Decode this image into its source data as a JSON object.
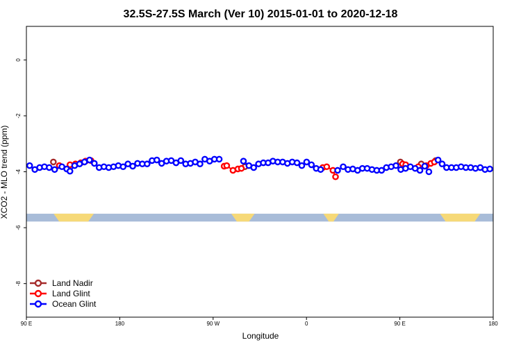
{
  "chart_data": {
    "type": "scatter",
    "title": "32.5S-27.5S March (Ver 10)   2015-01-01 to 2020-12-18",
    "xlabel": "Longitude",
    "ylabel": "XCO2 - MLO trend (ppm)",
    "xlim": [
      90,
      450
    ],
    "ylim": [
      -9.2,
      1.2
    ],
    "x_ticks": [
      {
        "value": 90,
        "label": "90 E"
      },
      {
        "value": 162,
        "label": "180"
      },
      {
        "value": 234,
        "label": "90 W"
      },
      {
        "value": 306,
        "label": "0"
      },
      {
        "value": 378,
        "label": "90 E"
      },
      {
        "value": 450,
        "label": "180"
      }
    ],
    "y_ticks": [
      {
        "value": 0,
        "label": "0"
      },
      {
        "value": -2,
        "label": "-2"
      },
      {
        "value": -4,
        "label": "-4"
      },
      {
        "value": -6,
        "label": "-6"
      },
      {
        "value": -8,
        "label": "-8"
      }
    ],
    "legend_position": "bottom-left",
    "land_mask": {
      "y_low": -5.78,
      "y_high": -5.5,
      "ocean_color": "#a8bcd8",
      "land_color": "#f6d978",
      "land_segments": [
        [
          111,
          142
        ],
        [
          248,
          266
        ],
        [
          319,
          331
        ],
        [
          409,
          440
        ]
      ]
    },
    "series": [
      {
        "name": "Land Nadir",
        "color": "#a52a2a",
        "points": [
          [
            110.8,
            -3.65
          ],
          [
            258.5,
            -3.82
          ],
          [
            378.4,
            -3.65
          ],
          [
            394.5,
            -3.72
          ],
          [
            405.6,
            -3.6
          ]
        ]
      },
      {
        "name": "Land Glint",
        "color": "#ff0000",
        "points": [
          [
            115.4,
            -3.78
          ],
          [
            123.6,
            -3.75
          ],
          [
            127.8,
            -3.72
          ],
          [
            131.9,
            -3.68
          ],
          [
            135.6,
            -3.62
          ],
          [
            139.8,
            -3.6
          ],
          [
            242.5,
            -3.8
          ],
          [
            244.5,
            -3.78
          ],
          [
            249.3,
            -3.95
          ],
          [
            253.1,
            -3.9
          ],
          [
            255.8,
            -3.88
          ],
          [
            318.5,
            -3.85
          ],
          [
            321.6,
            -3.82
          ],
          [
            326.4,
            -3.95
          ],
          [
            328.4,
            -4.18
          ],
          [
            380.1,
            -3.72
          ],
          [
            382.5,
            -3.75
          ],
          [
            392.2,
            -3.82
          ],
          [
            398.4,
            -3.78
          ],
          [
            401.9,
            -3.7
          ],
          [
            404.6,
            -3.65
          ]
        ]
      },
      {
        "name": "Ocean Glint",
        "color": "#0000ff",
        "points": [
          [
            92.5,
            -3.78
          ],
          [
            96.5,
            -3.92
          ],
          [
            100.2,
            -3.85
          ],
          [
            103.9,
            -3.82
          ],
          [
            107.6,
            -3.85
          ],
          [
            111.8,
            -3.92
          ],
          [
            117.4,
            -3.82
          ],
          [
            121.1,
            -3.9
          ],
          [
            123.6,
            -3.98
          ],
          [
            127.2,
            -3.78
          ],
          [
            131.0,
            -3.72
          ],
          [
            134.8,
            -3.65
          ],
          [
            138.7,
            -3.58
          ],
          [
            142.4,
            -3.7
          ],
          [
            146.1,
            -3.85
          ],
          [
            149.8,
            -3.82
          ],
          [
            153.5,
            -3.85
          ],
          [
            157.2,
            -3.82
          ],
          [
            160.9,
            -3.78
          ],
          [
            164.6,
            -3.82
          ],
          [
            168.3,
            -3.72
          ],
          [
            172.0,
            -3.8
          ],
          [
            175.7,
            -3.7
          ],
          [
            179.4,
            -3.72
          ],
          [
            183.1,
            -3.72
          ],
          [
            186.9,
            -3.6
          ],
          [
            190.6,
            -3.58
          ],
          [
            194.3,
            -3.7
          ],
          [
            198.0,
            -3.62
          ],
          [
            201.7,
            -3.6
          ],
          [
            205.4,
            -3.68
          ],
          [
            209.1,
            -3.6
          ],
          [
            212.8,
            -3.72
          ],
          [
            216.5,
            -3.7
          ],
          [
            220.2,
            -3.65
          ],
          [
            223.9,
            -3.72
          ],
          [
            227.6,
            -3.55
          ],
          [
            231.3,
            -3.62
          ],
          [
            235.0,
            -3.55
          ],
          [
            238.7,
            -3.55
          ],
          [
            257.4,
            -3.62
          ],
          [
            261.6,
            -3.78
          ],
          [
            265.3,
            -3.85
          ],
          [
            269.0,
            -3.72
          ],
          [
            272.7,
            -3.68
          ],
          [
            276.4,
            -3.68
          ],
          [
            280.1,
            -3.62
          ],
          [
            283.8,
            -3.65
          ],
          [
            287.6,
            -3.65
          ],
          [
            291.3,
            -3.7
          ],
          [
            295.0,
            -3.65
          ],
          [
            298.7,
            -3.68
          ],
          [
            302.4,
            -3.78
          ],
          [
            306.1,
            -3.65
          ],
          [
            309.8,
            -3.75
          ],
          [
            313.5,
            -3.88
          ],
          [
            316.9,
            -3.92
          ],
          [
            330.0,
            -3.95
          ],
          [
            334.3,
            -3.82
          ],
          [
            338.0,
            -3.92
          ],
          [
            341.7,
            -3.9
          ],
          [
            345.4,
            -3.95
          ],
          [
            349.1,
            -3.88
          ],
          [
            352.8,
            -3.88
          ],
          [
            356.5,
            -3.92
          ],
          [
            360.2,
            -3.95
          ],
          [
            363.9,
            -3.95
          ],
          [
            367.6,
            -3.85
          ],
          [
            371.3,
            -3.82
          ],
          [
            375.0,
            -3.78
          ],
          [
            378.7,
            -3.92
          ],
          [
            382.4,
            -3.88
          ],
          [
            386.1,
            -3.82
          ],
          [
            389.8,
            -3.88
          ],
          [
            393.5,
            -3.95
          ],
          [
            397.2,
            -3.8
          ],
          [
            400.4,
            -4.0
          ],
          [
            407.5,
            -3.58
          ],
          [
            410.6,
            -3.72
          ],
          [
            414.0,
            -3.85
          ],
          [
            417.8,
            -3.85
          ],
          [
            421.5,
            -3.85
          ],
          [
            425.2,
            -3.82
          ],
          [
            428.9,
            -3.85
          ],
          [
            432.6,
            -3.85
          ],
          [
            436.3,
            -3.88
          ],
          [
            440.0,
            -3.85
          ],
          [
            443.7,
            -3.92
          ],
          [
            447.4,
            -3.9
          ]
        ]
      }
    ]
  }
}
